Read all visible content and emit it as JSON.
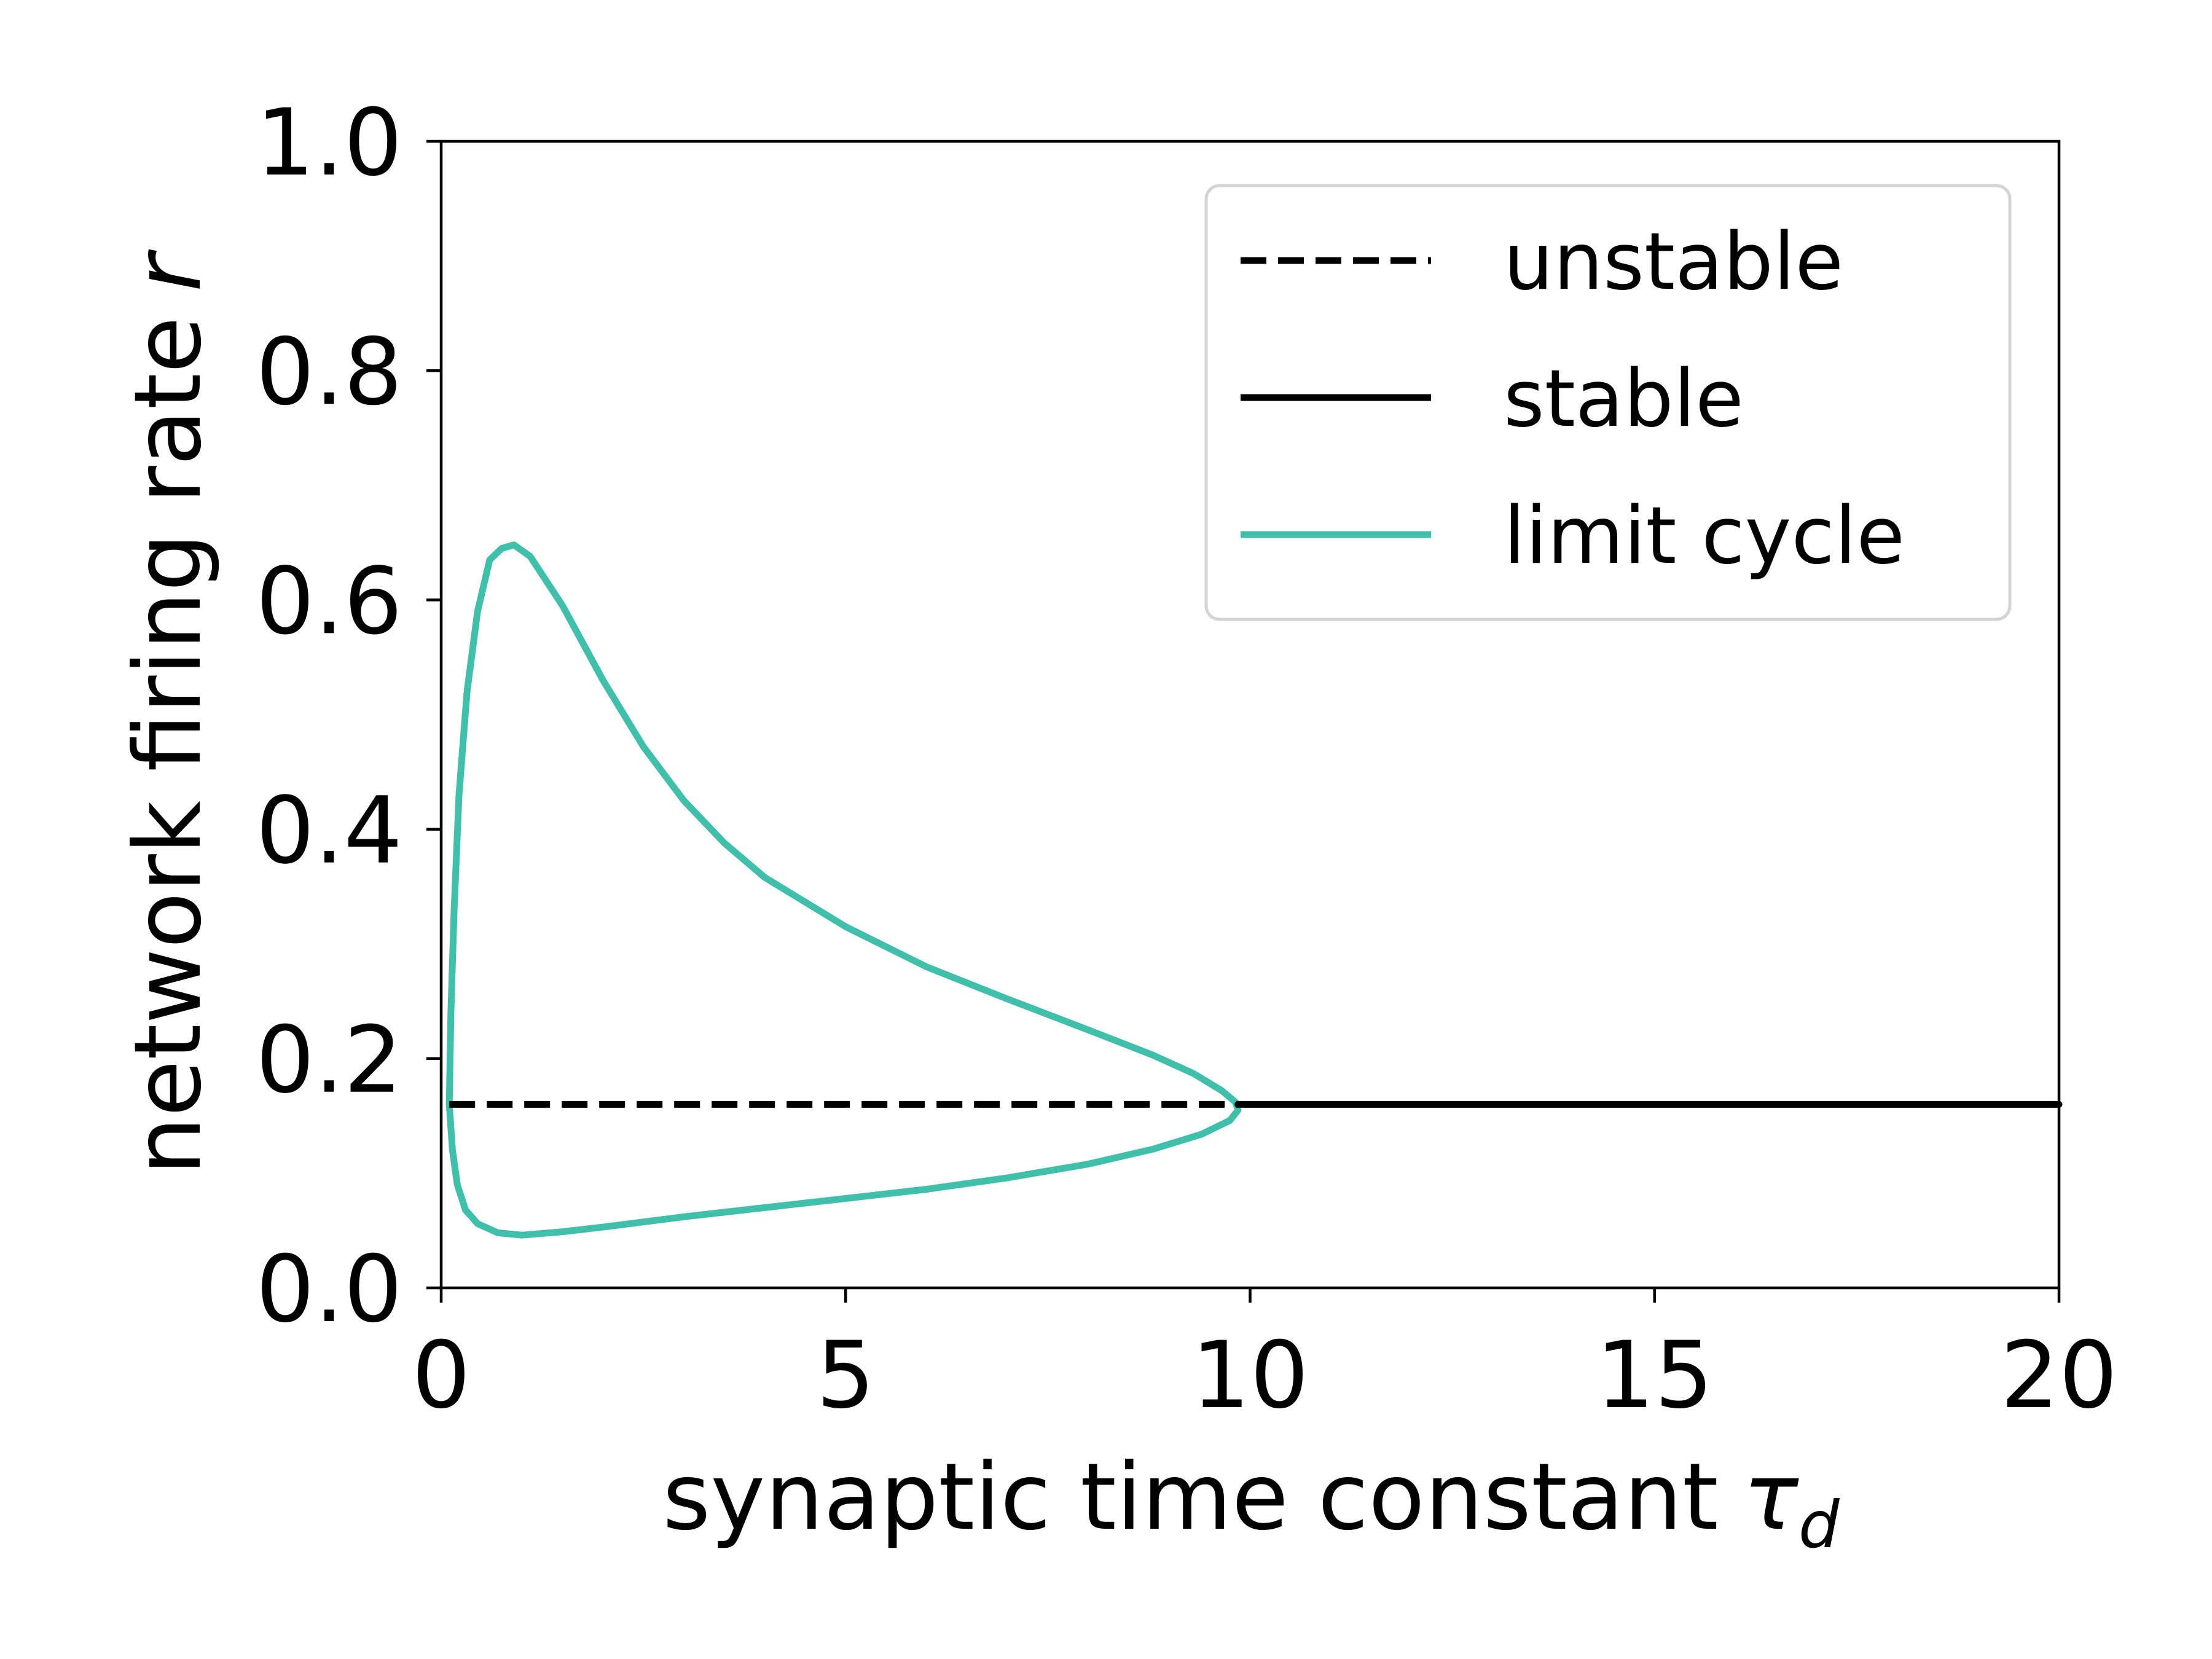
{
  "chart_data": {
    "type": "line",
    "xlabel": "synaptic time constant",
    "xlabel_symbol": "τ",
    "xlabel_subscript": "d",
    "ylabel": "network firing rate",
    "ylabel_symbol": "r",
    "xlim": [
      0,
      20
    ],
    "ylim": [
      0,
      1.0
    ],
    "xticks": [
      0,
      5,
      10,
      15,
      20
    ],
    "xtick_labels": [
      "0",
      "5",
      "10",
      "15",
      "20"
    ],
    "yticks": [
      0.0,
      0.2,
      0.4,
      0.6,
      0.8,
      1.0
    ],
    "ytick_labels": [
      "0.0",
      "0.2",
      "0.4",
      "0.6",
      "0.8",
      "1.0"
    ],
    "grid": false,
    "legend_position": "top-right",
    "series": [
      {
        "name": "unstable",
        "style": "dashed",
        "color": "#000000",
        "points": [
          [
            0.1,
            0.16
          ],
          [
            9.85,
            0.16
          ]
        ]
      },
      {
        "name": "stable",
        "style": "solid",
        "color": "#000000",
        "points": [
          [
            9.85,
            0.16
          ],
          [
            20.0,
            0.16
          ]
        ]
      },
      {
        "name": "limit cycle",
        "style": "solid",
        "color": "#40bfab",
        "points": [
          [
            0.1,
            0.16
          ],
          [
            0.12,
            0.24
          ],
          [
            0.16,
            0.33
          ],
          [
            0.22,
            0.43
          ],
          [
            0.32,
            0.52
          ],
          [
            0.45,
            0.59
          ],
          [
            0.6,
            0.635
          ],
          [
            0.75,
            0.645
          ],
          [
            0.9,
            0.648
          ],
          [
            1.1,
            0.638
          ],
          [
            1.5,
            0.595
          ],
          [
            2.0,
            0.53
          ],
          [
            2.5,
            0.472
          ],
          [
            3.0,
            0.425
          ],
          [
            3.5,
            0.388
          ],
          [
            4.0,
            0.358
          ],
          [
            5.0,
            0.315
          ],
          [
            6.0,
            0.28
          ],
          [
            7.0,
            0.252
          ],
          [
            8.0,
            0.225
          ],
          [
            8.8,
            0.203
          ],
          [
            9.3,
            0.187
          ],
          [
            9.65,
            0.172
          ],
          [
            9.82,
            0.162
          ],
          [
            9.85,
            0.155
          ],
          [
            9.75,
            0.146
          ],
          [
            9.4,
            0.134
          ],
          [
            8.8,
            0.121
          ],
          [
            8.0,
            0.108
          ],
          [
            7.0,
            0.096
          ],
          [
            6.0,
            0.086
          ],
          [
            5.0,
            0.078
          ],
          [
            4.0,
            0.07
          ],
          [
            3.0,
            0.062
          ],
          [
            2.0,
            0.053
          ],
          [
            1.5,
            0.049
          ],
          [
            1.0,
            0.046
          ],
          [
            0.7,
            0.048
          ],
          [
            0.45,
            0.056
          ],
          [
            0.3,
            0.068
          ],
          [
            0.2,
            0.09
          ],
          [
            0.14,
            0.12
          ],
          [
            0.1,
            0.16
          ]
        ]
      }
    ]
  }
}
